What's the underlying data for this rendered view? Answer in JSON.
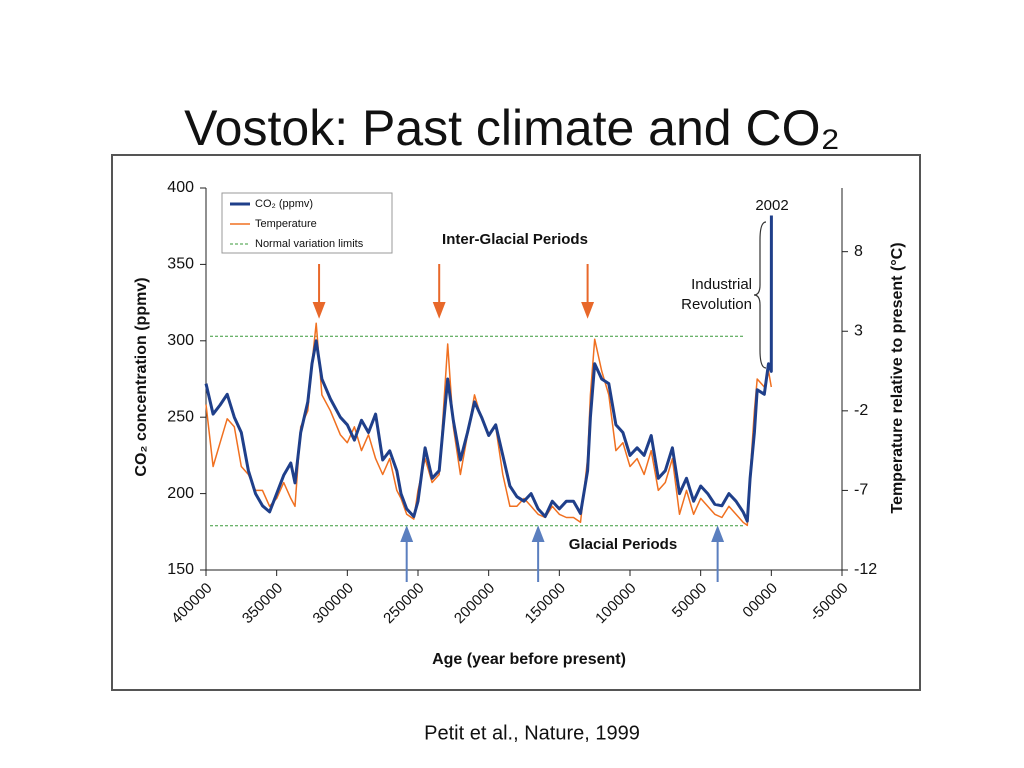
{
  "chart_data": {
    "type": "line",
    "title": "Vostok: Past climate and CO₂",
    "xlabel": "Age (year before present)",
    "ylabel": "CO₂ concentration (ppmv)",
    "y2label": "Temperature relative to present (°C)",
    "source": "Petit et al., Nature, 1999",
    "x": [
      400000,
      395000,
      390000,
      385000,
      380000,
      375000,
      370000,
      365000,
      360000,
      355000,
      350000,
      345000,
      340000,
      337000,
      333000,
      328000,
      325000,
      322000,
      318000,
      312000,
      305000,
      300000,
      295000,
      290000,
      285000,
      280000,
      275000,
      270000,
      265000,
      262000,
      258000,
      253000,
      250000,
      245000,
      240000,
      235000,
      232000,
      229000,
      225000,
      220000,
      215000,
      210000,
      205000,
      200000,
      195000,
      190000,
      185000,
      180000,
      175000,
      170000,
      165000,
      160000,
      155000,
      150000,
      145000,
      140000,
      135000,
      130000,
      128000,
      125000,
      120000,
      115000,
      110000,
      105000,
      100000,
      95000,
      90000,
      85000,
      80000,
      75000,
      70000,
      65000,
      60000,
      55000,
      50000,
      45000,
      40000,
      35000,
      30000,
      25000,
      20000,
      17000,
      15000,
      12000,
      10000,
      5000,
      2000,
      0,
      -50
    ],
    "series": [
      {
        "name": "CO₂ (ppmv)",
        "color": "#1f3f8a",
        "axis": "y",
        "values": [
          272,
          252,
          258,
          265,
          250,
          240,
          215,
          200,
          192,
          188,
          200,
          212,
          220,
          207,
          240,
          260,
          285,
          300,
          275,
          262,
          250,
          245,
          235,
          248,
          240,
          252,
          222,
          228,
          215,
          200,
          190,
          185,
          195,
          230,
          210,
          215,
          245,
          275,
          248,
          222,
          240,
          260,
          250,
          238,
          245,
          225,
          205,
          198,
          195,
          200,
          190,
          185,
          195,
          190,
          195,
          195,
          187,
          215,
          250,
          285,
          275,
          272,
          245,
          240,
          225,
          230,
          225,
          238,
          210,
          215,
          230,
          200,
          210,
          195,
          205,
          200,
          193,
          192,
          200,
          195,
          188,
          182,
          210,
          240,
          268,
          265,
          285,
          280,
          382
        ]
      },
      {
        "name": "Temperature",
        "color": "#f07020",
        "axis": "y2",
        "values": [
          -1.6,
          -5.5,
          -4,
          -2.5,
          -3,
          -5.5,
          -6,
          -7,
          -7,
          -8,
          -7.5,
          -6.5,
          -7.5,
          -8,
          -3,
          -2,
          1,
          3.5,
          -1,
          -2,
          -3.5,
          -4,
          -3,
          -4.5,
          -3.5,
          -5,
          -6,
          -5,
          -7,
          -7.5,
          -8.5,
          -8.8,
          -7,
          -5,
          -6.5,
          -6,
          -2,
          2.2,
          -3,
          -6,
          -3.5,
          -1,
          -2.5,
          -3.5,
          -3,
          -6,
          -8,
          -8,
          -7.5,
          -8,
          -8.5,
          -8.7,
          -8,
          -8.5,
          -8.7,
          -8.7,
          -9,
          -5,
          -1,
          2.5,
          0.5,
          -1,
          -4.5,
          -4,
          -5.5,
          -5,
          -6,
          -4.5,
          -7,
          -6.5,
          -5,
          -8.5,
          -7,
          -8.5,
          -7.5,
          -8,
          -8.5,
          -8.7,
          -8,
          -8.5,
          -9,
          -9.2,
          -6,
          -2,
          0,
          -0.5,
          0.5,
          -0.5,
          null
        ]
      }
    ],
    "limits": {
      "name": "Normal variation limits",
      "color": "#3a9a3a",
      "values": [
        179,
        303
      ]
    },
    "xlim": [
      400000,
      -50000
    ],
    "xticks": [
      400000,
      350000,
      300000,
      250000,
      200000,
      150000,
      100000,
      50000,
      {
        "value": 0,
        "label": "00000"
      },
      -50000
    ],
    "ylim": [
      150,
      400
    ],
    "yticks": [
      150,
      200,
      250,
      300,
      350,
      400
    ],
    "y2lim": [
      -12,
      12
    ],
    "y2ticks": [
      -12,
      -7,
      -2,
      3,
      8
    ],
    "annotations": {
      "inter_glacial": {
        "text": "Inter-Glacial Periods",
        "color": "#e8682a",
        "x": [
          320000,
          235000,
          130000
        ]
      },
      "glacial": {
        "text": "Glacial Periods",
        "color": "#5b7fbf",
        "x": [
          258000,
          165000,
          38000
        ]
      },
      "year": "2002",
      "industrial": [
        "Industrial",
        "Revolution"
      ]
    }
  }
}
